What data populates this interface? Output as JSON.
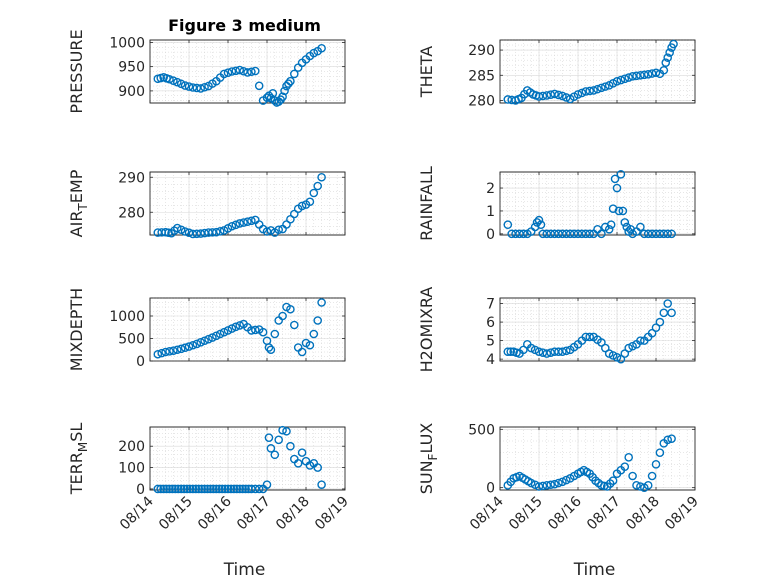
{
  "chart_data": [
    {
      "type": "scatter",
      "title": "Figure 3 medium",
      "xlabel": "",
      "ylabel": "PRESSURE",
      "xlim": [
        0,
        5
      ],
      "ylim": [
        875,
        1005
      ],
      "yticks": [
        900,
        950,
        1000
      ],
      "xtick_labels": [
        "08/14",
        "08/15",
        "08/16",
        "08/17",
        "08/18",
        "08/19"
      ],
      "show_xtick_labels": false,
      "grid": true,
      "minor_grid": true,
      "color": "#0072BD",
      "series": [
        {
          "x": [
            0.2,
            0.35,
            0.5,
            0.7,
            0.9,
            1.1,
            1.3,
            1.5,
            1.7,
            1.9,
            2.1,
            2.3,
            2.5,
            2.7,
            2.9,
            3.0,
            3.05,
            3.1,
            3.15,
            3.2,
            3.25,
            3.3,
            3.35,
            3.4,
            3.45,
            3.5,
            3.55,
            3.6,
            3.7,
            3.8,
            3.9,
            4.0,
            4.1,
            4.2,
            4.3,
            4.4
          ],
          "y": [
            925,
            928,
            924,
            918,
            911,
            907,
            905,
            910,
            920,
            935,
            940,
            943,
            938,
            941,
            880,
            886,
            890,
            885,
            895,
            880,
            876,
            878,
            882,
            888,
            900,
            910,
            915,
            920,
            935,
            948,
            958,
            965,
            972,
            978,
            982,
            988
          ]
        }
      ]
    },
    {
      "type": "scatter",
      "title": "",
      "xlabel": "",
      "ylabel": "THETA",
      "xlim": [
        0,
        5
      ],
      "ylim": [
        279.5,
        292
      ],
      "yticks": [
        280,
        285,
        290
      ],
      "xtick_labels": [
        "08/14",
        "08/15",
        "08/16",
        "08/17",
        "08/18",
        "08/19"
      ],
      "show_xtick_labels": false,
      "grid": true,
      "minor_grid": true,
      "color": "#0072BD",
      "series": [
        {
          "x": [
            0.2,
            0.4,
            0.55,
            0.7,
            0.85,
            1.0,
            1.2,
            1.4,
            1.6,
            1.8,
            2.0,
            2.2,
            2.4,
            2.6,
            2.8,
            3.0,
            3.2,
            3.4,
            3.6,
            3.8,
            4.0,
            4.1,
            4.2,
            4.25,
            4.3,
            4.35,
            4.4,
            4.45
          ],
          "y": [
            280.2,
            280.0,
            280.5,
            282.0,
            281.2,
            280.8,
            281.0,
            281.3,
            280.9,
            280.3,
            281.2,
            281.8,
            282.0,
            282.5,
            283.0,
            283.8,
            284.3,
            284.8,
            285.0,
            285.2,
            285.5,
            285.3,
            286,
            287.5,
            288.5,
            289.5,
            290.5,
            291.2
          ]
        }
      ]
    },
    {
      "type": "scatter",
      "title": "",
      "xlabel": "",
      "ylabel": "AIR_TEMP",
      "xlim": [
        0,
        5
      ],
      "ylim": [
        273.5,
        291.5
      ],
      "yticks": [
        280,
        290
      ],
      "xtick_labels": [
        "08/14",
        "08/15",
        "08/16",
        "08/17",
        "08/18",
        "08/19"
      ],
      "show_xtick_labels": false,
      "grid": true,
      "minor_grid": true,
      "color": "#0072BD",
      "series": [
        {
          "x": [
            0.2,
            0.4,
            0.55,
            0.7,
            0.9,
            1.1,
            1.3,
            1.5,
            1.7,
            1.9,
            2.1,
            2.3,
            2.5,
            2.7,
            2.8,
            2.9,
            3.0,
            3.1,
            3.2,
            3.3,
            3.4,
            3.5,
            3.6,
            3.7,
            3.8,
            3.9,
            4.0,
            4.1,
            4.2,
            4.3,
            4.4
          ],
          "y": [
            274.2,
            274.3,
            274.0,
            275.5,
            274.5,
            273.8,
            273.9,
            274.2,
            274.3,
            274.8,
            276,
            276.8,
            277.3,
            277.8,
            276.5,
            275.2,
            274.5,
            274.8,
            274.2,
            275.0,
            275.2,
            276.5,
            278.0,
            279.5,
            281.0,
            281.8,
            282.2,
            283.0,
            285.5,
            287.5,
            290.0
          ]
        }
      ]
    },
    {
      "type": "scatter",
      "title": "",
      "xlabel": "",
      "ylabel": "RAINFALL",
      "xlim": [
        0,
        5
      ],
      "ylim": [
        -0.05,
        2.7
      ],
      "yticks": [
        0,
        1,
        2
      ],
      "xtick_labels": [
        "08/14",
        "08/15",
        "08/16",
        "08/17",
        "08/18",
        "08/19"
      ],
      "show_xtick_labels": false,
      "grid": true,
      "minor_grid": true,
      "color": "#0072BD",
      "series": [
        {
          "x": [
            0.2,
            0.3,
            0.4,
            0.5,
            0.6,
            0.7,
            0.8,
            0.9,
            0.95,
            1.0,
            1.05,
            1.1,
            1.2,
            1.4,
            1.6,
            1.8,
            2.0,
            2.2,
            2.4,
            2.5,
            2.6,
            2.7,
            2.8,
            2.85,
            2.9,
            2.95,
            3.0,
            3.05,
            3.1,
            3.15,
            3.2,
            3.25,
            3.3,
            3.35,
            3.4,
            3.5,
            3.6,
            3.7,
            3.8,
            3.9,
            4.0,
            4.2,
            4.4
          ],
          "y": [
            0.4,
            0,
            0,
            0,
            0,
            0,
            0.1,
            0.3,
            0.5,
            0.6,
            0.4,
            0,
            0,
            0,
            0,
            0,
            0,
            0,
            0,
            0.2,
            0,
            0.3,
            0.2,
            0.4,
            1.1,
            2.4,
            2.0,
            1.0,
            2.6,
            1.0,
            0.5,
            0.3,
            0.1,
            0.2,
            0,
            0.1,
            0.3,
            0,
            0,
            0,
            0,
            0,
            0
          ]
        }
      ]
    },
    {
      "type": "scatter",
      "title": "",
      "xlabel": "",
      "ylabel": "MIXDEPTH",
      "xlim": [
        0,
        5
      ],
      "ylim": [
        0,
        1400
      ],
      "yticks": [
        0,
        500,
        1000
      ],
      "xtick_labels": [
        "08/14",
        "08/15",
        "08/16",
        "08/17",
        "08/18",
        "08/19"
      ],
      "show_xtick_labels": false,
      "grid": true,
      "minor_grid": true,
      "color": "#0072BD",
      "series": [
        {
          "x": [
            0.2,
            0.4,
            0.6,
            0.8,
            1.0,
            1.2,
            1.4,
            1.6,
            1.8,
            2.0,
            2.2,
            2.4,
            2.6,
            2.8,
            2.9,
            3.0,
            3.05,
            3.1,
            3.2,
            3.3,
            3.4,
            3.5,
            3.6,
            3.7,
            3.8,
            3.9,
            4.0,
            4.1,
            4.2,
            4.3,
            4.4
          ],
          "y": [
            150,
            200,
            230,
            270,
            320,
            380,
            450,
            520,
            600,
            680,
            760,
            820,
            680,
            700,
            640,
            450,
            300,
            250,
            600,
            900,
            1000,
            1200,
            1150,
            800,
            300,
            200,
            400,
            350,
            600,
            900,
            1300
          ]
        }
      ]
    },
    {
      "type": "scatter",
      "title": "",
      "xlabel": "",
      "ylabel": "H2OMIXRA",
      "xlim": [
        0,
        5
      ],
      "ylim": [
        3.9,
        7.3
      ],
      "yticks": [
        4,
        5,
        6,
        7
      ],
      "xtick_labels": [
        "08/14",
        "08/15",
        "08/16",
        "08/17",
        "08/18",
        "08/19"
      ],
      "show_xtick_labels": false,
      "grid": true,
      "minor_grid": true,
      "color": "#0072BD",
      "series": [
        {
          "x": [
            0.2,
            0.35,
            0.5,
            0.6,
            0.7,
            0.8,
            1.0,
            1.2,
            1.4,
            1.6,
            1.8,
            2.0,
            2.2,
            2.4,
            2.6,
            2.8,
            3.0,
            3.1,
            3.2,
            3.3,
            3.4,
            3.5,
            3.6,
            3.7,
            3.8,
            3.9,
            4.0,
            4.1,
            4.2,
            4.3,
            4.4
          ],
          "y": [
            4.4,
            4.4,
            4.3,
            4.5,
            4.8,
            4.6,
            4.4,
            4.3,
            4.4,
            4.4,
            4.5,
            4.8,
            5.2,
            5.2,
            4.9,
            4.3,
            4.1,
            4.0,
            4.3,
            4.6,
            4.7,
            4.8,
            5.0,
            5.0,
            5.2,
            5.4,
            5.7,
            6.0,
            6.5,
            7.0,
            6.5
          ]
        }
      ]
    },
    {
      "type": "scatter",
      "title": "",
      "xlabel": "Time",
      "ylabel": "TERR_MSL",
      "xlim": [
        0,
        5
      ],
      "ylim": [
        -5,
        290
      ],
      "yticks": [
        0,
        100,
        200
      ],
      "xtick_labels": [
        "08/14",
        "08/15",
        "08/16",
        "08/17",
        "08/18",
        "08/19"
      ],
      "show_xtick_labels": true,
      "grid": true,
      "minor_grid": true,
      "color": "#0072BD",
      "series": [
        {
          "x": [
            0.2,
            0.5,
            0.8,
            1.1,
            1.4,
            1.7,
            2.0,
            2.3,
            2.6,
            2.8,
            2.9,
            3.0,
            3.05,
            3.1,
            3.2,
            3.3,
            3.4,
            3.5,
            3.6,
            3.7,
            3.8,
            3.9,
            4.0,
            4.1,
            4.2,
            4.3,
            4.4
          ],
          "y": [
            0,
            0,
            0,
            0,
            0,
            0,
            0,
            0,
            0,
            0,
            0,
            20,
            240,
            190,
            160,
            230,
            275,
            270,
            200,
            140,
            120,
            170,
            130,
            110,
            120,
            100,
            20
          ]
        }
      ]
    },
    {
      "type": "scatter",
      "title": "",
      "xlabel": "Time",
      "ylabel": "SUN_FLUX",
      "xlim": [
        0,
        5
      ],
      "ylim": [
        -20,
        520
      ],
      "yticks": [
        0,
        500
      ],
      "xtick_labels": [
        "08/14",
        "08/15",
        "08/16",
        "08/17",
        "08/18",
        "08/19"
      ],
      "show_xtick_labels": true,
      "grid": true,
      "minor_grid": true,
      "color": "#0072BD",
      "series": [
        {
          "x": [
            0.2,
            0.35,
            0.5,
            0.65,
            0.8,
            1.0,
            1.2,
            1.4,
            1.6,
            1.8,
            2.0,
            2.15,
            2.3,
            2.45,
            2.6,
            2.75,
            2.9,
            3.0,
            3.1,
            3.2,
            3.3,
            3.4,
            3.5,
            3.6,
            3.7,
            3.8,
            3.9,
            4.0,
            4.1,
            4.2,
            4.3,
            4.4
          ],
          "y": [
            20,
            80,
            100,
            70,
            40,
            10,
            20,
            30,
            50,
            80,
            120,
            150,
            120,
            60,
            20,
            10,
            60,
            120,
            150,
            180,
            260,
            100,
            20,
            10,
            0,
            20,
            100,
            200,
            300,
            380,
            410,
            420
          ]
        }
      ]
    }
  ]
}
